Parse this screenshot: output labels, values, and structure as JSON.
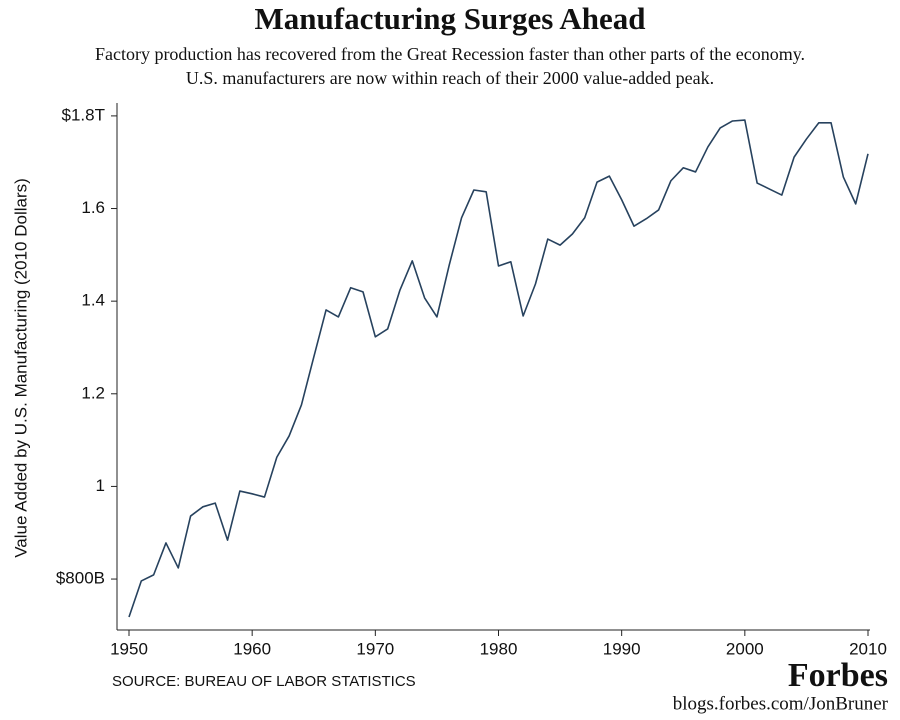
{
  "chart_data": {
    "type": "line",
    "title": "Manufacturing Surges Ahead",
    "subtitle": [
      "Factory production has recovered from the Great Recession faster than other parts of the economy.",
      "U.S. manufacturers are now within reach of their 2000 value-added peak."
    ],
    "y_label": "Value Added by U.S. Manufacturing (2010 Dollars)",
    "source": "SOURCE: BUREAU OF LABOR STATISTICS",
    "brand": "Forbes",
    "url": "blogs.forbes.com/JonBruner",
    "x": [
      1950,
      1951,
      1952,
      1953,
      1954,
      1955,
      1956,
      1957,
      1958,
      1959,
      1960,
      1961,
      1962,
      1963,
      1964,
      1965,
      1966,
      1967,
      1968,
      1969,
      1970,
      1971,
      1972,
      1973,
      1974,
      1975,
      1976,
      1977,
      1978,
      1979,
      1980,
      1981,
      1982,
      1983,
      1984,
      1985,
      1986,
      1987,
      1988,
      1989,
      1990,
      1991,
      1992,
      1993,
      1994,
      1995,
      1996,
      1997,
      1998,
      1999,
      2000,
      2001,
      2002,
      2003,
      2004,
      2005,
      2006,
      2007,
      2008,
      2009,
      2010
    ],
    "series": [
      {
        "name": "Value added",
        "color": "#27425e",
        "values": [
          0.718,
          0.796,
          0.809,
          0.878,
          0.824,
          0.936,
          0.956,
          0.964,
          0.884,
          0.99,
          0.984,
          0.977,
          1.063,
          1.109,
          1.176,
          1.279,
          1.381,
          1.366,
          1.429,
          1.42,
          1.323,
          1.34,
          1.424,
          1.487,
          1.407,
          1.366,
          1.478,
          1.58,
          1.64,
          1.636,
          1.476,
          1.485,
          1.368,
          1.437,
          1.534,
          1.521,
          1.545,
          1.58,
          1.657,
          1.67,
          1.619,
          1.562,
          1.578,
          1.597,
          1.66,
          1.688,
          1.679,
          1.733,
          1.774,
          1.789,
          1.791,
          1.655,
          1.642,
          1.629,
          1.711,
          1.75,
          1.785,
          1.785,
          1.668,
          1.61,
          1.718
        ]
      }
    ],
    "xlim": [
      1950,
      2010
    ],
    "xticks": [
      1950,
      1960,
      1970,
      1980,
      1990,
      2000,
      2010
    ],
    "ylim": [
      0.69,
      1.83
    ],
    "yticks": [
      {
        "value": 0.8,
        "label": "$800B"
      },
      1,
      1.2,
      1.4,
      1.6,
      {
        "value": 1.8,
        "label": "$1.8T"
      }
    ],
    "grid": false
  }
}
